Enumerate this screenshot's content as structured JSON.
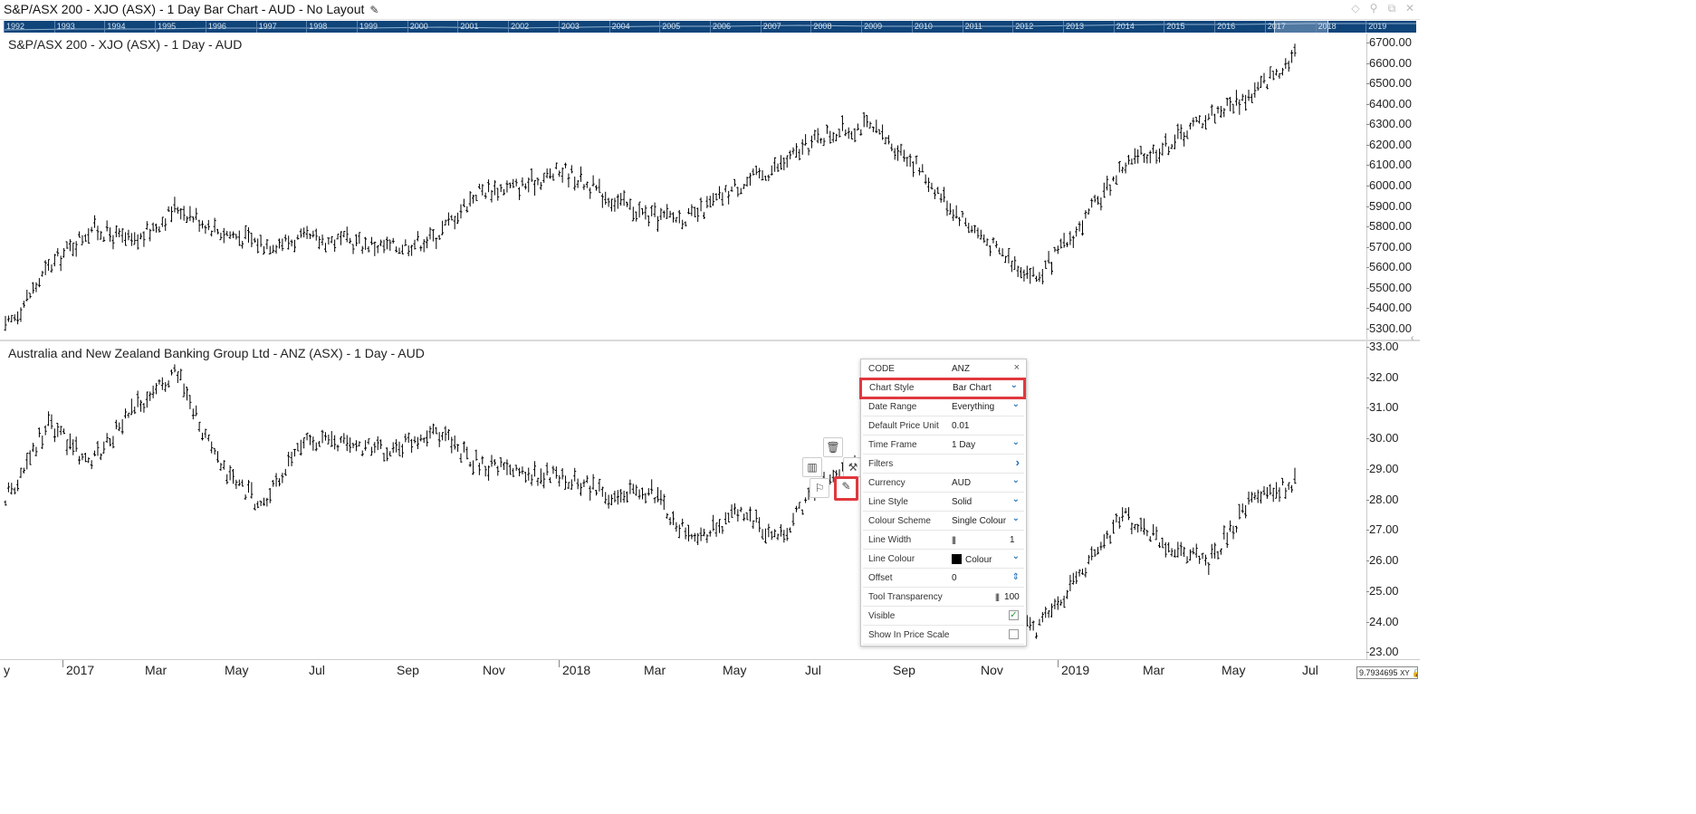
{
  "window": {
    "title": "S&P/ASX 200 - XJO (ASX) - 1 Day Bar Chart - AUD - No Layout",
    "edit_icon": "pencil-icon",
    "controls": [
      "diamond-icon",
      "pin-icon",
      "restore-icon",
      "close-icon"
    ]
  },
  "navigator": {
    "years": [
      "1992",
      "1993",
      "1994",
      "1995",
      "1996",
      "1997",
      "1998",
      "1999",
      "2000",
      "2001",
      "2002",
      "2003",
      "2004",
      "2005",
      "2006",
      "2007",
      "2008",
      "2009",
      "2010",
      "2011",
      "2012",
      "2013",
      "2014",
      "2015",
      "2016",
      "2017",
      "2018",
      "2019"
    ]
  },
  "panels": {
    "top": {
      "label": "S&P/ASX 200 - XJO (ASX) - 1 Day - AUD",
      "price_ticks": [
        "6700.00",
        "6600.00",
        "6500.00",
        "6400.00",
        "6300.00",
        "6200.00",
        "6100.00",
        "6000.00",
        "5900.00",
        "5800.00",
        "5700.00",
        "5600.00",
        "5500.00",
        "5400.00",
        "5300.00"
      ]
    },
    "bottom": {
      "label": "Australia and New Zealand Banking Group Ltd - ANZ (ASX) - 1 Day - AUD",
      "price_ticks": [
        "33.00",
        "32.00",
        "31.00",
        "30.00",
        "29.00",
        "28.00",
        "27.00",
        "26.00",
        "25.00",
        "24.00",
        "23.00"
      ]
    }
  },
  "date_axis": {
    "labels": [
      "y",
      "2017",
      "Mar",
      "May",
      "Jul",
      "Sep",
      "Nov",
      "2018",
      "Mar",
      "May",
      "Jul",
      "Sep",
      "Nov",
      "2019",
      "Mar",
      "May",
      "Jul"
    ],
    "major": [
      "2017",
      "2018",
      "2019"
    ],
    "xy_readout": "9.7934695",
    "xy_tag": "XY"
  },
  "floating_toolbar": {
    "delete": "trash-icon",
    "chart_type": "bar-chart-icon",
    "ruler": "wrench-icon",
    "run": "running-man-icon",
    "edit": "pencil-icon"
  },
  "properties": {
    "code_label": "CODE",
    "code_value": "ANZ",
    "close": "×",
    "rows": [
      {
        "label": "Chart Style",
        "value": "Bar Chart",
        "control": "dropdown"
      },
      {
        "label": "Date Range",
        "value": "Everything",
        "control": "dropdown"
      },
      {
        "label": "Default Price Unit",
        "value": "0.01",
        "control": "none"
      },
      {
        "label": "Time Frame",
        "value": "1 Day",
        "control": "dropdown"
      },
      {
        "label": "Filters",
        "value": "",
        "control": "arrow"
      },
      {
        "label": "Currency",
        "value": "AUD",
        "control": "dropdown"
      },
      {
        "label": "Line Style",
        "value": "Solid",
        "control": "dropdown"
      },
      {
        "label": "Colour Scheme",
        "value": "Single Colour",
        "control": "dropdown"
      },
      {
        "label": "Line Width",
        "value": "1",
        "control": "slider"
      },
      {
        "label": "Line Colour",
        "value": "Colour",
        "control": "dropdown"
      },
      {
        "label": "Offset",
        "value": "0",
        "control": "spinner"
      },
      {
        "label": "Tool Transparency",
        "value": "100",
        "control": "slider"
      },
      {
        "label": "Visible",
        "value": "",
        "control": "checkbox-checked"
      },
      {
        "label": "Show In Price Scale",
        "value": "",
        "control": "checkbox-empty"
      }
    ],
    "line_colour_hex": "#000000"
  },
  "chart_data": [
    {
      "type": "bar",
      "title": "S&P/ASX 200 - XJO (ASX) - 1 Day - AUD",
      "style": "OHLC bar",
      "ylim": [
        5250,
        6750
      ],
      "x_range": [
        "2016-12",
        "2019-06"
      ],
      "points": [
        {
          "x": "2016-12-01",
          "y": 5300
        },
        {
          "x": "2017-01-01",
          "y": 5600
        },
        {
          "x": "2017-02-01",
          "y": 5800
        },
        {
          "x": "2017-03-01",
          "y": 5720
        },
        {
          "x": "2017-04-01",
          "y": 5900
        },
        {
          "x": "2017-05-01",
          "y": 5780
        },
        {
          "x": "2017-06-01",
          "y": 5720
        },
        {
          "x": "2017-07-01",
          "y": 5740
        },
        {
          "x": "2017-08-01",
          "y": 5730
        },
        {
          "x": "2017-09-01",
          "y": 5700
        },
        {
          "x": "2017-10-01",
          "y": 5750
        },
        {
          "x": "2017-11-01",
          "y": 5980
        },
        {
          "x": "2017-12-01",
          "y": 6000
        },
        {
          "x": "2018-01-01",
          "y": 6080
        },
        {
          "x": "2018-02-01",
          "y": 5950
        },
        {
          "x": "2018-03-01",
          "y": 5850
        },
        {
          "x": "2018-04-01",
          "y": 5850
        },
        {
          "x": "2018-05-01",
          "y": 6000
        },
        {
          "x": "2018-06-01",
          "y": 6100
        },
        {
          "x": "2018-07-01",
          "y": 6250
        },
        {
          "x": "2018-08-01",
          "y": 6300
        },
        {
          "x": "2018-09-01",
          "y": 6150
        },
        {
          "x": "2018-10-01",
          "y": 5900
        },
        {
          "x": "2018-11-01",
          "y": 5700
        },
        {
          "x": "2018-12-01",
          "y": 5550
        },
        {
          "x": "2019-01-01",
          "y": 5800
        },
        {
          "x": "2019-02-01",
          "y": 6100
        },
        {
          "x": "2019-03-01",
          "y": 6200
        },
        {
          "x": "2019-04-01",
          "y": 6350
        },
        {
          "x": "2019-05-01",
          "y": 6450
        },
        {
          "x": "2019-06-01",
          "y": 6650
        }
      ]
    },
    {
      "type": "bar",
      "title": "Australia and New Zealand Banking Group Ltd - ANZ (ASX) - 1 Day - AUD",
      "style": "OHLC bar",
      "ylim": [
        22.8,
        33.2
      ],
      "x_range": [
        "2016-12",
        "2019-06"
      ],
      "points": [
        {
          "x": "2016-12-01",
          "y": 28.0
        },
        {
          "x": "2017-01-01",
          "y": 30.5
        },
        {
          "x": "2017-02-01",
          "y": 29.2
        },
        {
          "x": "2017-03-01",
          "y": 31.0
        },
        {
          "x": "2017-04-01",
          "y": 32.2
        },
        {
          "x": "2017-05-01",
          "y": 29.0
        },
        {
          "x": "2017-06-01",
          "y": 27.8
        },
        {
          "x": "2017-07-01",
          "y": 30.0
        },
        {
          "x": "2017-08-01",
          "y": 29.8
        },
        {
          "x": "2017-09-01",
          "y": 29.6
        },
        {
          "x": "2017-10-01",
          "y": 30.3
        },
        {
          "x": "2017-11-01",
          "y": 29.2
        },
        {
          "x": "2017-12-01",
          "y": 28.9
        },
        {
          "x": "2018-01-01",
          "y": 28.8
        },
        {
          "x": "2018-02-01",
          "y": 28.2
        },
        {
          "x": "2018-03-01",
          "y": 28.3
        },
        {
          "x": "2018-04-01",
          "y": 26.6
        },
        {
          "x": "2018-05-01",
          "y": 27.6
        },
        {
          "x": "2018-06-01",
          "y": 26.8
        },
        {
          "x": "2018-07-01",
          "y": 28.6
        },
        {
          "x": "2018-08-01",
          "y": 29.2
        },
        {
          "x": "2018-09-01",
          "y": 27.5
        },
        {
          "x": "2018-10-01",
          "y": 25.8
        },
        {
          "x": "2018-11-01",
          "y": 25.0
        },
        {
          "x": "2018-12-01",
          "y": 23.8
        },
        {
          "x": "2019-01-01",
          "y": 25.5
        },
        {
          "x": "2019-02-01",
          "y": 27.5
        },
        {
          "x": "2019-03-01",
          "y": 26.5
        },
        {
          "x": "2019-04-01",
          "y": 26.0
        },
        {
          "x": "2019-05-01",
          "y": 28.0
        },
        {
          "x": "2019-06-01",
          "y": 28.6
        }
      ]
    }
  ]
}
